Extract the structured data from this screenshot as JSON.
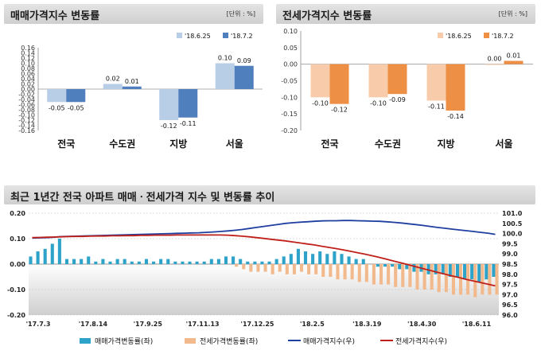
{
  "panels": [
    {
      "title": "매매가격지수 변동률",
      "unit": "[단위 : %]"
    },
    {
      "title": "전세가격지수 변동률",
      "unit": "[단위 : %]"
    }
  ],
  "bottom_title": "최근 1년간 전국 아파트 매매ㆍ전세가격 지수 및 변동률 추이",
  "chart_data": [
    {
      "type": "bar",
      "title": "매매가격지수 변동률",
      "categories": [
        "전국",
        "수도권",
        "지방",
        "서울"
      ],
      "series": [
        {
          "name": "'18.6.25",
          "values": [
            -0.05,
            0.02,
            -0.12,
            0.1
          ],
          "color": "#b8cde6"
        },
        {
          "name": "'18.7.2",
          "values": [
            -0.05,
            0.01,
            -0.11,
            0.09
          ],
          "color": "#4f7fbd"
        }
      ],
      "value_labels": [
        [
          "-0.05",
          "0.02",
          "-0.12",
          "0.10"
        ],
        [
          "-0.05",
          "0.01",
          "-0.11",
          "0.09"
        ]
      ],
      "ylim": [
        -0.16,
        0.16
      ],
      "yticks": [
        "0.16",
        "0.14",
        "0.12",
        "0.10",
        "0.08",
        "0.06",
        "0.04",
        "0.02",
        "0.00",
        "-0.02",
        "-0.04",
        "-0.06",
        "-0.08",
        "-0.10",
        "-0.12",
        "-0.14",
        "-0.16"
      ],
      "legend_position": "top-right"
    },
    {
      "type": "bar",
      "title": "전세가격지수 변동률",
      "categories": [
        "전국",
        "수도권",
        "지방",
        "서울"
      ],
      "series": [
        {
          "name": "'18.6.25",
          "values": [
            -0.1,
            -0.1,
            -0.11,
            0.0
          ],
          "color": "#f8ccaa"
        },
        {
          "name": "'18.7.2",
          "values": [
            -0.12,
            -0.09,
            -0.14,
            0.01
          ],
          "color": "#ee8f46"
        }
      ],
      "value_labels": [
        [
          "-0.10",
          "-0.10",
          "-0.11",
          "0.00"
        ],
        [
          "-0.12",
          "-0.09",
          "-0.14",
          "0.01"
        ]
      ],
      "ylim": [
        -0.2,
        0.1
      ],
      "yticks": [
        "0.10",
        "0.05",
        "0.00",
        "-0.05",
        "-0.10",
        "-0.15",
        "-0.20"
      ],
      "legend_position": "top-right"
    },
    {
      "type": "bar+line",
      "title": "최근 1년간 전국 아파트 매매ㆍ전세가격 지수 및 변동률 추이",
      "x_ticks": [
        "'17.7.3",
        "'17.8.14",
        "'17.9.25",
        "'17.11.13",
        "'17.12.25",
        "'18.2.5",
        "'18.3.19",
        "'18.4.30",
        "'18.6.11"
      ],
      "y_left": {
        "ylim": [
          -0.2,
          0.2
        ],
        "ticks": [
          "0.20",
          "0.10",
          "0.00",
          "-0.10",
          "-0.20"
        ]
      },
      "y_right": {
        "ylim": [
          96.0,
          101.0
        ],
        "ticks": [
          "101.0",
          "100.5",
          "100.0",
          "99.5",
          "99.0",
          "98.5",
          "98.0",
          "97.5",
          "97.0",
          "96.5",
          "96.0"
        ]
      },
      "series": [
        {
          "name": "매매가격변동률(좌)",
          "kind": "bar",
          "color": "#2ea3c9",
          "values": [
            0.03,
            0.05,
            0.06,
            0.08,
            0.1,
            0.02,
            0.02,
            0.02,
            0.03,
            0.01,
            0.02,
            0.01,
            0.02,
            0.02,
            0.01,
            0.01,
            0.02,
            0.01,
            0.02,
            0.02,
            0.01,
            0.01,
            0.01,
            0.01,
            0.01,
            0.02,
            0.02,
            0.03,
            0.03,
            0.02,
            0.01,
            0.01,
            0.01,
            0.01,
            0.02,
            0.03,
            0.04,
            0.06,
            0.05,
            0.04,
            0.05,
            0.04,
            0.05,
            0.04,
            0.03,
            0.02,
            0.02,
            0.0,
            -0.01,
            -0.01,
            -0.01,
            -0.02,
            -0.02,
            -0.03,
            -0.03,
            -0.04,
            -0.04,
            -0.04,
            -0.05,
            -0.05,
            -0.06,
            -0.06,
            -0.07,
            -0.06,
            -0.05
          ]
        },
        {
          "name": "전세가격변동률(좌)",
          "kind": "bar",
          "color": "#f2b98c",
          "values": [
            0.0,
            0.0,
            0.0,
            0.0,
            0.0,
            0.0,
            0.0,
            0.0,
            0.0,
            0.0,
            0.0,
            0.0,
            0.0,
            0.0,
            0.0,
            0.0,
            0.0,
            0.0,
            0.0,
            0.0,
            0.0,
            0.0,
            0.0,
            0.0,
            0.0,
            0.0,
            0.0,
            0.0,
            -0.01,
            -0.02,
            -0.03,
            -0.03,
            -0.03,
            -0.04,
            -0.03,
            -0.04,
            -0.04,
            -0.03,
            -0.04,
            -0.04,
            -0.05,
            -0.05,
            -0.06,
            -0.06,
            -0.06,
            -0.07,
            -0.07,
            -0.08,
            -0.08,
            -0.08,
            -0.09,
            -0.09,
            -0.09,
            -0.1,
            -0.1,
            -0.1,
            -0.11,
            -0.11,
            -0.12,
            -0.12,
            -0.12,
            -0.13,
            -0.12,
            -0.12,
            -0.12
          ]
        },
        {
          "name": "매매가격지수(우)",
          "kind": "line",
          "color": "#1f3fa0",
          "values": [
            99.78,
            99.79,
            99.8,
            99.82,
            99.85,
            99.86,
            99.87,
            99.88,
            99.89,
            99.9,
            99.91,
            99.92,
            99.93,
            99.94,
            99.95,
            99.96,
            99.97,
            99.98,
            99.99,
            100.0,
            100.01,
            100.02,
            100.03,
            100.04,
            100.06,
            100.08,
            100.1,
            100.13,
            100.16,
            100.2,
            100.25,
            100.3,
            100.35,
            100.4,
            100.45,
            100.5,
            100.53,
            100.56,
            100.58,
            100.6,
            100.62,
            100.63,
            100.63,
            100.64,
            100.64,
            100.63,
            100.62,
            100.61,
            100.6,
            100.58,
            100.55,
            100.52,
            100.48,
            100.44,
            100.4,
            100.35,
            100.3,
            100.26,
            100.22,
            100.18,
            100.14,
            100.1,
            100.06,
            100.02,
            99.96
          ]
        },
        {
          "name": "전세가격지수(우)",
          "kind": "line",
          "color": "#c0201a",
          "values": [
            99.8,
            99.81,
            99.82,
            99.83,
            99.84,
            99.85,
            99.86,
            99.86,
            99.87,
            99.88,
            99.88,
            99.89,
            99.89,
            99.9,
            99.9,
            99.91,
            99.91,
            99.92,
            99.92,
            99.92,
            99.93,
            99.93,
            99.93,
            99.93,
            99.93,
            99.93,
            99.93,
            99.92,
            99.9,
            99.87,
            99.84,
            99.8,
            99.76,
            99.72,
            99.68,
            99.64,
            99.59,
            99.54,
            99.49,
            99.44,
            99.38,
            99.32,
            99.26,
            99.2,
            99.13,
            99.06,
            98.99,
            98.91,
            98.83,
            98.74,
            98.65,
            98.56,
            98.47,
            98.37,
            98.28,
            98.19,
            98.1,
            98.01,
            97.92,
            97.84,
            97.75,
            97.67,
            97.59,
            97.51,
            97.43
          ]
        }
      ],
      "legend_position": "bottom"
    }
  ]
}
